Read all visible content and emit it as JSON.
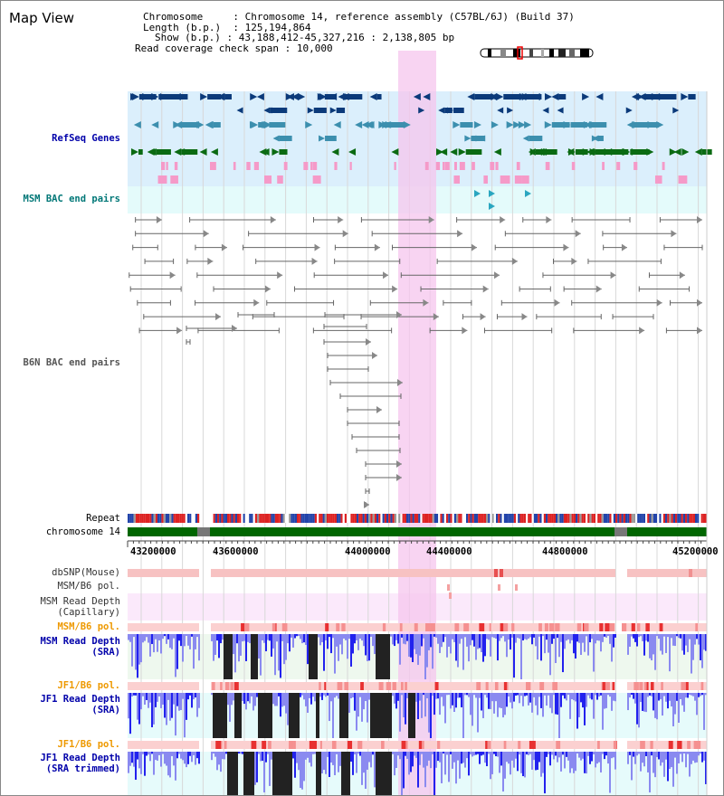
{
  "window": {
    "title": "Map View"
  },
  "info": {
    "chromosome_key": "Chromosome",
    "chromosome_val": "Chromosome 14, reference assembly (C57BL/6J) (Build 37)",
    "length_key": "Length (b.p.)",
    "length_val": "125,194,864",
    "show_key": "Show (b.p.)",
    "show_val": "43,188,412-45,327,216 : 2,138,805 bp",
    "span_key": "Read coverage check span",
    "span_val": "10,000"
  },
  "tracks": {
    "refseq": {
      "label": "RefSeq Genes",
      "color": "#0000aa"
    },
    "msm_bac": {
      "label": "MSM BAC end pairs",
      "color": "#007777"
    },
    "b6n_bac": {
      "label": "B6N BAC end pairs",
      "color": "#555555"
    },
    "repeat": {
      "label": "Repeat"
    },
    "chromosome": {
      "label": "chromosome 14"
    },
    "dbsnp": {
      "label": "dbSNP(Mouse)"
    },
    "msm_b6_pol": {
      "label": "MSM/B6 pol."
    },
    "msm_depth_cap": {
      "label": "MSM Read Depth\n(Capillary)"
    },
    "msm_b6_pol2": {
      "label": "MSM/B6 pol.",
      "color": "#ee9900"
    },
    "msm_depth_sra": {
      "label": "MSM Read Depth\n(SRA)",
      "color": "#0000aa"
    },
    "jf1_b6_pol": {
      "label": "JF1/B6 pol.",
      "color": "#ee9900"
    },
    "jf1_depth_sra": {
      "label": "JF1 Read Depth\n(SRA)",
      "color": "#0000aa"
    },
    "jf1_b6_pol2": {
      "label": "JF1/B6 pol.",
      "color": "#ee9900"
    },
    "jf1_depth_trim": {
      "label": "JF1 Read Depth\n(SRA trimmed)",
      "color": "#0000aa"
    }
  },
  "ruler": {
    "ticks": [
      "43200000",
      "43600000",
      "44000000",
      "44400000",
      "44800000",
      "45200000"
    ]
  },
  "colors": {
    "highlight": "#f6c6ee",
    "refseq_bg": "#dbeffc",
    "msm_bac_bg": "#e4fbfb",
    "chrom_bar": "#006600",
    "depth_blue": "#2222ee",
    "depth_black": "#222222"
  }
}
